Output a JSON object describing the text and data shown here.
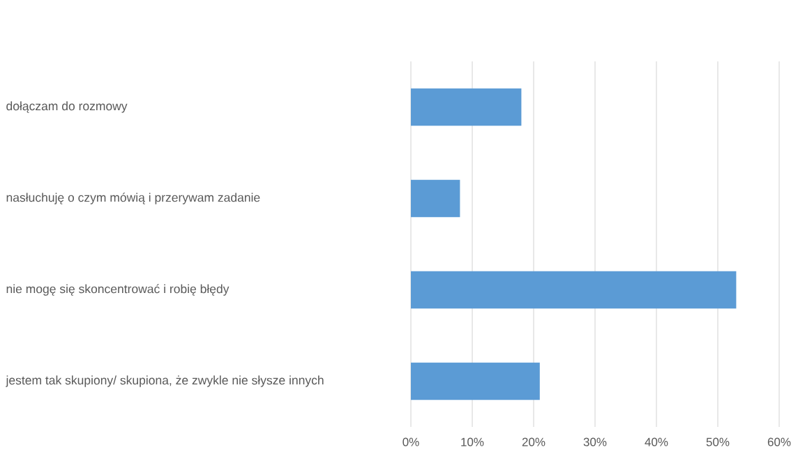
{
  "chart_data": {
    "type": "bar",
    "orientation": "horizontal",
    "categories": [
      "dołączam do rozmowy",
      "nasłuchuję o czym mówią i przerywam zadanie",
      "nie mogę się skoncentrować i robię błędy",
      "jestem tak skupiony/ skupiona, że zwykle nie słysze innych"
    ],
    "values": [
      18,
      8,
      53,
      21
    ],
    "color": "#5b9bd5",
    "xlim": [
      0,
      60
    ],
    "xticks": [
      {
        "value": 0,
        "label": "0%"
      },
      {
        "value": 10,
        "label": "10%"
      },
      {
        "value": 20,
        "label": "20%"
      },
      {
        "value": 30,
        "label": "30%"
      },
      {
        "value": 40,
        "label": "40%"
      },
      {
        "value": 50,
        "label": "50%"
      },
      {
        "value": 60,
        "label": "60%"
      }
    ],
    "grid": "x"
  }
}
